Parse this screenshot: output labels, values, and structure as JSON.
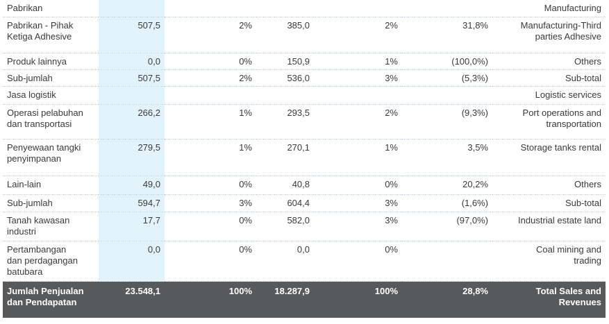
{
  "rows": [
    {
      "id": "Pabrikan",
      "v1": "",
      "p1": "",
      "v2": "",
      "p2": "",
      "g": "",
      "en": "Manufacturing"
    },
    {
      "id": "Pabrikan - Pihak Ketiga Adhesive",
      "v1": "507,5",
      "p1": "2%",
      "v2": "385,0",
      "p2": "2%",
      "g": "31,8%",
      "en": "Manufacturing-Third parties Adhesive"
    },
    {
      "id": "Produk lainnya",
      "v1": "0,0",
      "p1": "0%",
      "v2": "150,9",
      "p2": "1%",
      "g": "(100,0%)",
      "en": "Others"
    },
    {
      "id": "Sub-jumlah",
      "v1": "507,5",
      "p1": "2%",
      "v2": "536,0",
      "p2": "3%",
      "g": "(5,3%)",
      "en": "Sub-total"
    },
    {
      "id": "Jasa logistik",
      "v1": "",
      "p1": "",
      "v2": "",
      "p2": "",
      "g": "",
      "en": "Logistic services"
    },
    {
      "id": "Operasi pelabuhan dan transportasi",
      "v1": "266,2",
      "p1": "1%",
      "v2": "293,5",
      "p2": "2%",
      "g": "(9,3%)",
      "en": "Port operations and transportation"
    },
    {
      "id": "Penyewaan tangki penyimpanan",
      "v1": "279,5",
      "p1": "1%",
      "v2": "270,1",
      "p2": "1%",
      "g": "3,5%",
      "en": "Storage tanks rental"
    },
    {
      "id": "Lain-lain",
      "v1": "49,0",
      "p1": "0%",
      "v2": "40,8",
      "p2": "0%",
      "g": "20,2%",
      "en": "Others"
    },
    {
      "id": "Sub-jumlah",
      "v1": "594,7",
      "p1": "3%",
      "v2": "604,4",
      "p2": "3%",
      "g": "(1,6%)",
      "en": "Sub-total"
    },
    {
      "id": "Tanah kawasan industri",
      "v1": "17,7",
      "p1": "0%",
      "v2": "582,0",
      "p2": "3%",
      "g": "(97,0%)",
      "en": "Industrial estate land"
    },
    {
      "id": "Pertambangan dan perdagangan batubara",
      "v1": "0,0",
      "p1": "0%",
      "v2": "0,0",
      "p2": "0%",
      "g": "",
      "en": "Coal mining and trading"
    },
    {
      "id": "Jumlah Penjualan dan Pendapatan",
      "v1": "23.548,1",
      "p1": "100%",
      "v2": "18.287,9",
      "p2": "100%",
      "g": "28,8%",
      "en": "Total Sales and Revenues"
    }
  ]
}
